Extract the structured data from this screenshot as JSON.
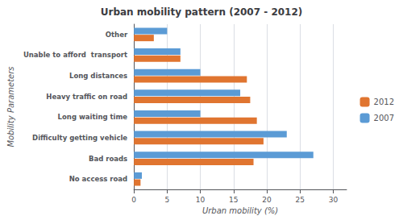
{
  "chart_data": {
    "type": "bar",
    "orientation": "horizontal",
    "title": "Urban mobility pattern (2007 - 2012)",
    "categories": [
      "No access road",
      "Bad roads",
      "Difficulty getting vehicle",
      "Long waiting time",
      "Heavy traffic on road",
      "Long distances",
      "Unable to afford  transport",
      "Other"
    ],
    "series": [
      {
        "name": "2012",
        "color": "#e07530",
        "values": [
          1.0,
          18,
          19.5,
          18.5,
          17.5,
          17,
          7,
          3
        ]
      },
      {
        "name": "2007",
        "color": "#5b9bd5",
        "values": [
          1.2,
          27,
          23,
          10,
          16,
          10,
          7,
          5
        ]
      }
    ],
    "xlabel": "Urban mobility (%)",
    "ylabel": "Mobility Parameters",
    "xlim": [
      0,
      32
    ],
    "xticks": [
      0,
      5,
      10,
      15,
      20,
      25,
      30
    ],
    "grid": true,
    "legend": "right"
  }
}
